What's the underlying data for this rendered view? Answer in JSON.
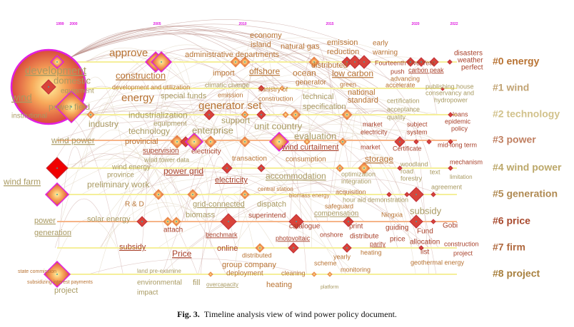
{
  "figure": {
    "years": [
      "1999",
      "2000",
      "2005",
      "2010",
      "2015",
      "2020",
      "2022"
    ],
    "colors": {
      "tan": "#a99a62",
      "orange": "#b87333",
      "red": "#a8402a",
      "year": "#e020e0",
      "lane": "#f5ef9a",
      "circle_stroke": "#e020e0"
    },
    "clusters": [
      {
        "label": "#0 energy",
        "color": "#b87333"
      },
      {
        "label": "#1 wind",
        "color": "#c2a474"
      },
      {
        "label": "#2 technology",
        "color": "#d2c28c"
      },
      {
        "label": "#3 power",
        "color": "#c08062"
      },
      {
        "label": "#4 wind power",
        "color": "#bca86a"
      },
      {
        "label": "#5 generation",
        "color": "#b08a52"
      },
      {
        "label": "#6 price",
        "color": "#a84a2e"
      },
      {
        "label": "#7 firm",
        "color": "#b06a40"
      },
      {
        "label": "#8 project",
        "color": "#a8803e"
      }
    ],
    "keywords": [
      {
        "text": "development",
        "u": true
      },
      {
        "text": "domestic"
      },
      {
        "text": "equipment"
      },
      {
        "text": "wind",
        "u": true
      },
      {
        "text": "power field"
      },
      {
        "text": "institutional"
      },
      {
        "text": "approve"
      },
      {
        "text": "construction",
        "u": true
      },
      {
        "text": "development and utilization"
      },
      {
        "text": "energy"
      },
      {
        "text": "special funds"
      },
      {
        "text": "import"
      },
      {
        "text": "offshore",
        "u": true
      },
      {
        "text": "climatic change"
      },
      {
        "text": "ministry of"
      },
      {
        "text": "construction"
      },
      {
        "text": "emission"
      },
      {
        "text": "generator set"
      },
      {
        "text": "industrialization"
      },
      {
        "text": "equipment"
      },
      {
        "text": "technology"
      },
      {
        "text": "support"
      },
      {
        "text": "enterprise"
      },
      {
        "text": "unit country"
      },
      {
        "text": "economy"
      },
      {
        "text": "island"
      },
      {
        "text": "natural gas"
      },
      {
        "text": "administrative departments"
      },
      {
        "text": "ocean"
      },
      {
        "text": "generator"
      },
      {
        "text": "technical"
      },
      {
        "text": "specification"
      },
      {
        "text": "green"
      },
      {
        "text": "national"
      },
      {
        "text": "standard"
      },
      {
        "text": "emission"
      },
      {
        "text": "reduction"
      },
      {
        "text": "early"
      },
      {
        "text": "warning"
      },
      {
        "text": "distributed"
      },
      {
        "text": "low carbon",
        "u": true
      },
      {
        "text": "Fourteenth Five-Year"
      },
      {
        "text": "push"
      },
      {
        "text": "carbon peak",
        "u": true
      },
      {
        "text": "advancing"
      },
      {
        "text": "accelerate"
      },
      {
        "text": "disasters"
      },
      {
        "text": "weather"
      },
      {
        "text": "perfect"
      },
      {
        "text": "publishing house"
      },
      {
        "text": "conservancy and"
      },
      {
        "text": "hydropower"
      },
      {
        "text": "certification"
      },
      {
        "text": "acceptance"
      },
      {
        "text": "quality"
      },
      {
        "text": "loans"
      },
      {
        "text": "epidemic"
      },
      {
        "text": "policy"
      },
      {
        "text": "market"
      },
      {
        "text": "electricity"
      },
      {
        "text": "subject"
      },
      {
        "text": "system"
      },
      {
        "text": "evaluation"
      },
      {
        "text": "industry"
      },
      {
        "text": "wind power",
        "u": true
      },
      {
        "text": "provincial"
      },
      {
        "text": "supervision",
        "u": true
      },
      {
        "text": "electricity"
      },
      {
        "text": "wind tower data"
      },
      {
        "text": "wind energy"
      },
      {
        "text": "province"
      },
      {
        "text": "power grid",
        "u": true
      },
      {
        "text": "transaction"
      },
      {
        "text": "wind curtailment",
        "u": true
      },
      {
        "text": "consumption"
      },
      {
        "text": "market"
      },
      {
        "text": "Certificate"
      },
      {
        "text": "mid-long term"
      },
      {
        "text": "electricity",
        "u": true
      },
      {
        "text": "accommodation",
        "u": true
      },
      {
        "text": "storage",
        "u": true
      },
      {
        "text": "woodland"
      },
      {
        "text": "road"
      },
      {
        "text": "forestry"
      },
      {
        "text": "text"
      },
      {
        "text": "mechanism"
      },
      {
        "text": "limitation"
      },
      {
        "text": "optimization"
      },
      {
        "text": "integration"
      },
      {
        "text": "agreement"
      },
      {
        "text": "wind farm",
        "u": true
      },
      {
        "text": "preliminary work"
      },
      {
        "text": "R & D"
      },
      {
        "text": "grid-connected",
        "u": true
      },
      {
        "text": "dispatch"
      },
      {
        "text": "central station"
      },
      {
        "text": "biomass energy"
      },
      {
        "text": "acquisition"
      },
      {
        "text": "hour aid demonstration"
      },
      {
        "text": "safeguard"
      },
      {
        "text": "compensation",
        "u": true
      },
      {
        "text": "subsidy"
      },
      {
        "text": "Ningxia"
      },
      {
        "text": "solar energy"
      },
      {
        "text": "biomass"
      },
      {
        "text": "attach"
      },
      {
        "text": "superintend"
      },
      {
        "text": "catalogue"
      },
      {
        "text": "print"
      },
      {
        "text": "guiding"
      },
      {
        "text": "Fund"
      },
      {
        "text": "Gobi"
      },
      {
        "text": "benchmark",
        "u": true
      },
      {
        "text": "photovoltaic",
        "u": true
      },
      {
        "text": "onshore"
      },
      {
        "text": "distribute"
      },
      {
        "text": "price"
      },
      {
        "text": "allocation"
      },
      {
        "text": "construction"
      },
      {
        "text": "project"
      },
      {
        "text": "list"
      },
      {
        "text": "power",
        "u": true
      },
      {
        "text": "generation",
        "u": true
      },
      {
        "text": "subsidy",
        "u": true
      },
      {
        "text": "Price",
        "u": true
      },
      {
        "text": "online"
      },
      {
        "text": "distributed"
      },
      {
        "text": "group company"
      },
      {
        "text": "deployment"
      },
      {
        "text": "parity",
        "u": true
      },
      {
        "text": "heating"
      },
      {
        "text": "yearly"
      },
      {
        "text": "scheme"
      },
      {
        "text": "geothermal energy"
      },
      {
        "text": "monitoring"
      },
      {
        "text": "cleaning"
      },
      {
        "text": "heating"
      },
      {
        "text": "platform"
      },
      {
        "text": "state commission"
      },
      {
        "text": "subsidizing interest payments"
      },
      {
        "text": "project"
      },
      {
        "text": "land pre-examine"
      },
      {
        "text": "environmental"
      },
      {
        "text": "impact"
      },
      {
        "text": "fill"
      },
      {
        "text": "overcapacity",
        "u": true
      }
    ]
  },
  "caption": {
    "label": "Fig. 3.",
    "text": "Timeline analysis view of wind power policy document."
  }
}
